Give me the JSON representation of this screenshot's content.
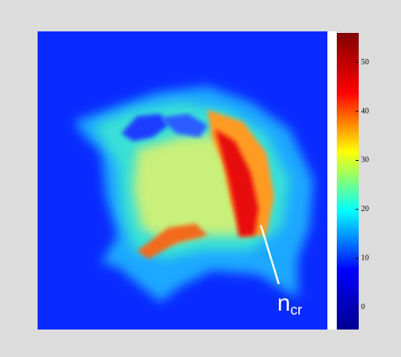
{
  "chart_data": {
    "type": "heatmap",
    "colorbar": {
      "ylim": [
        -4.5,
        56
      ],
      "yticks": [
        0,
        10,
        20,
        30,
        40,
        50
      ],
      "colors": [
        "#00008f",
        "#0000ff",
        "#00ffff",
        "#ffff00",
        "#ff0000",
        "#800000"
      ]
    },
    "annotation": {
      "text": "n",
      "subscript": "cr"
    }
  }
}
